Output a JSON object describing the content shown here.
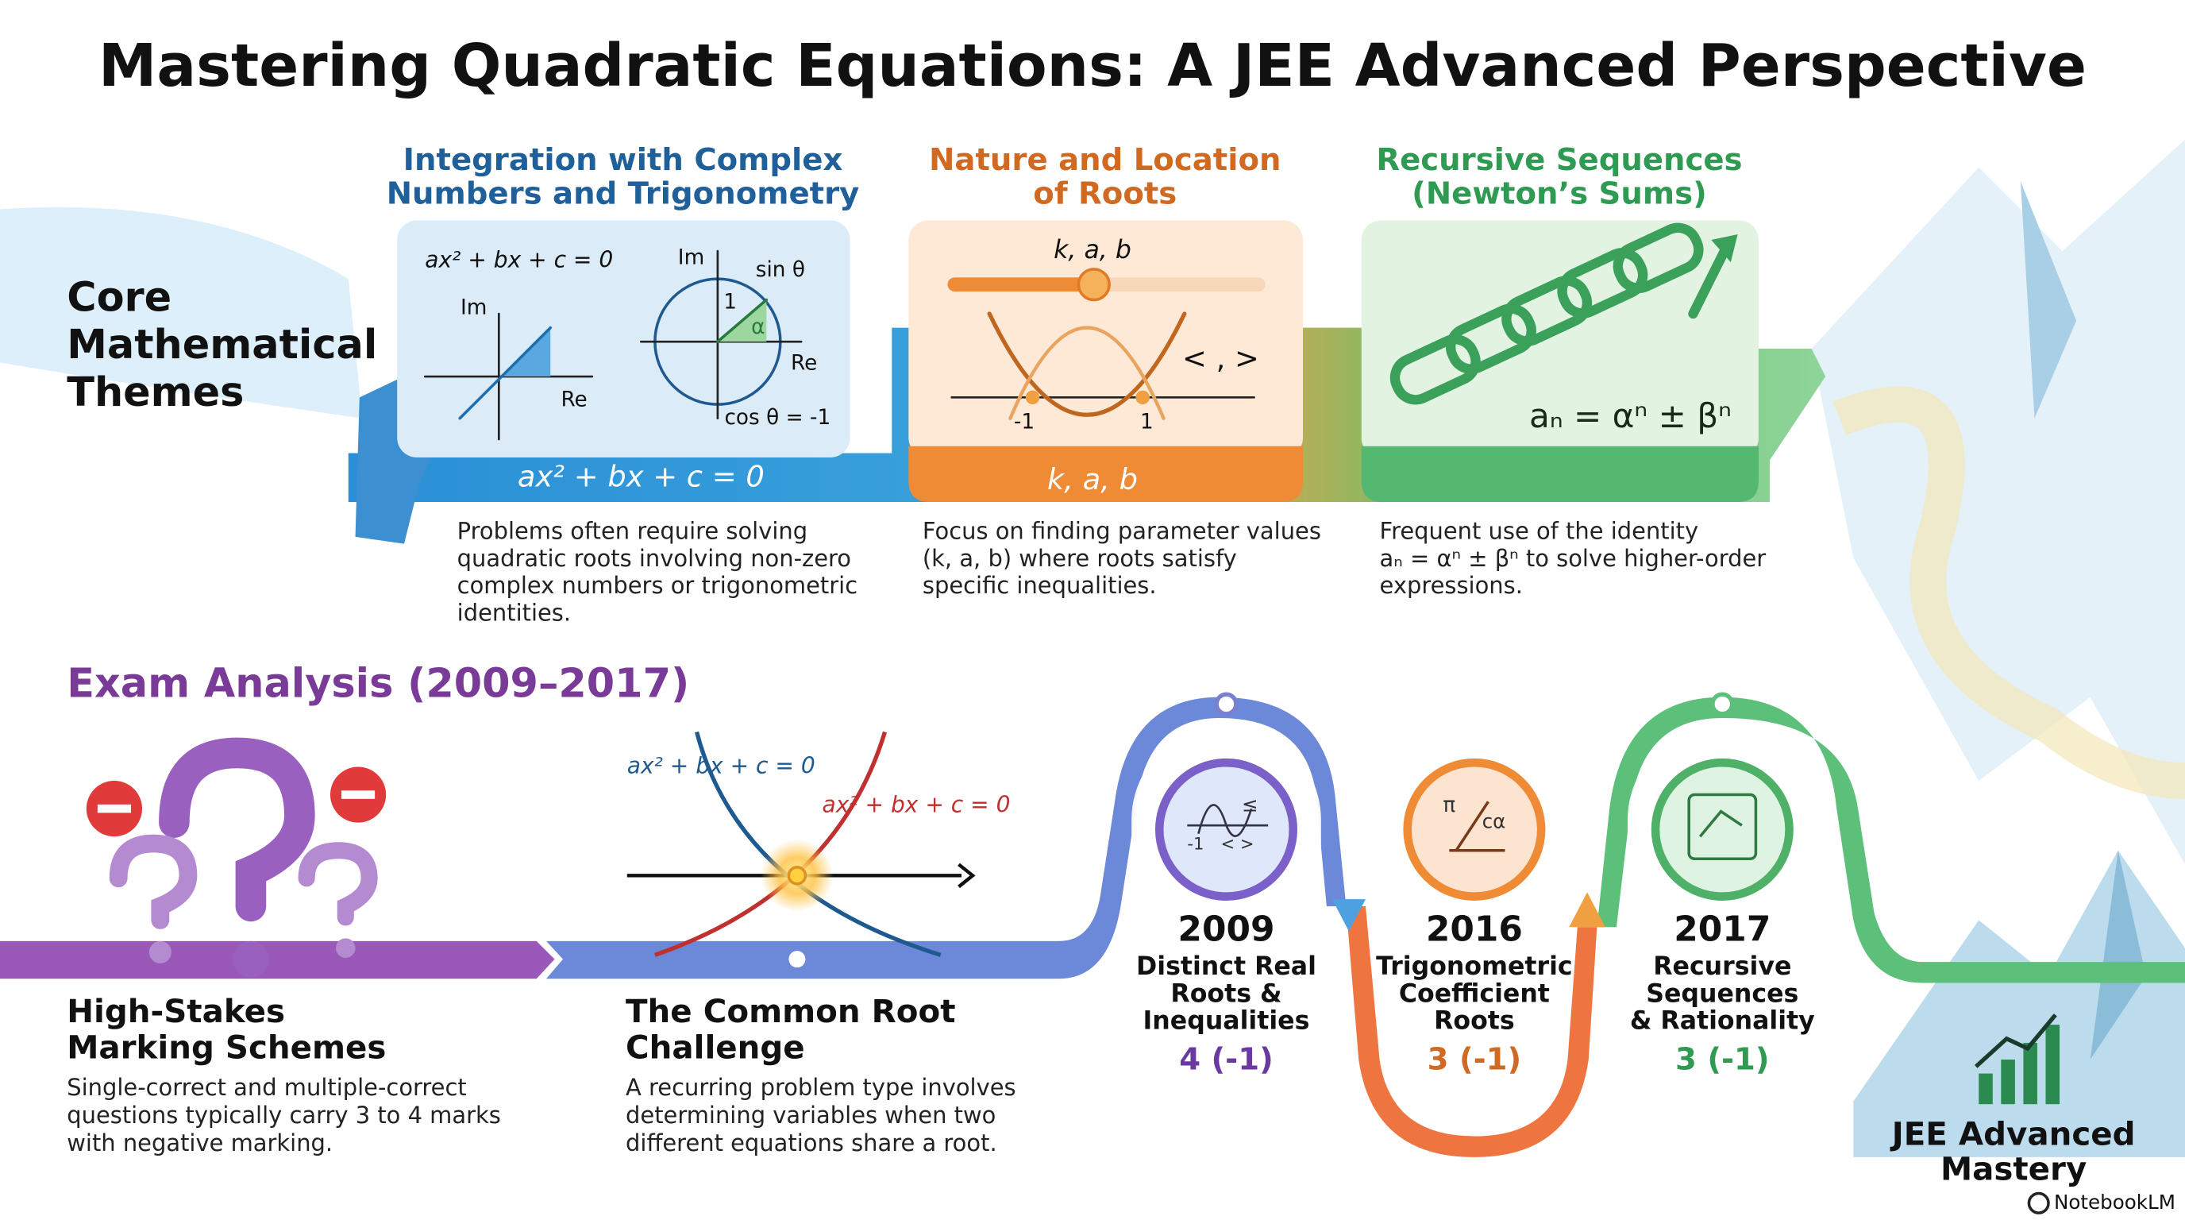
{
  "title": "Mastering Quadratic Equations: A JEE Advanced Perspective",
  "themes": {
    "heading": [
      "Core",
      "Mathematical",
      "Themes"
    ],
    "cards": [
      {
        "title": [
          "Integration with Complex",
          "Numbers and Trigonometry"
        ],
        "equation": "ax² + bx + c = 0",
        "plane_labels": [
          "Im",
          "Re"
        ],
        "circle_labels": [
          "Im",
          "Re",
          "sin θ",
          "1",
          "α",
          "cos θ = -1"
        ],
        "band": "ax² + bx + c = 0",
        "description": [
          "Problems often require solving",
          "quadratic roots involving non-zero",
          "complex numbers or trigonometric",
          "identities."
        ]
      },
      {
        "title": [
          "Nature and Location",
          "of Roots"
        ],
        "slider_label": "k, a, b",
        "inequality": "< , >",
        "root_labels": [
          "-1",
          "1"
        ],
        "band": "k, a, b",
        "description": [
          "Focus on finding parameter values",
          "(k, a, b) where roots satisfy",
          "specific inequalities."
        ]
      },
      {
        "title": [
          "Recursive Sequences",
          "(Newton’s Sums)"
        ],
        "formula": "aₙ = αⁿ ± βⁿ",
        "description": [
          "Frequent use of the identity",
          "aₙ = αⁿ ± βⁿ to solve higher-order",
          "expressions."
        ]
      }
    ]
  },
  "exam": {
    "heading": "Exam Analysis (2009–2017)",
    "marking": {
      "title": [
        "High-Stakes",
        "Marking Schemes"
      ],
      "description": [
        "Single-correct and multiple-correct",
        "questions typically carry 3 to 4 marks",
        "with negative marking."
      ]
    },
    "common_root": {
      "equations": [
        "ax² + bx + c = 0",
        "ax² + bx + c = 0"
      ],
      "title": [
        "The Common Root",
        "Challenge"
      ],
      "description": [
        "A recurring problem type involves",
        "determining variables when two",
        "different equations share a root."
      ]
    },
    "timeline": [
      {
        "year": "2009",
        "topic": [
          "Distinct Real",
          "Roots &",
          "Inequalities"
        ],
        "score": "4 (-1)",
        "icon_labels": [
          "≤",
          "-1",
          "< >"
        ]
      },
      {
        "year": "2016",
        "topic": [
          "Trigonometric",
          "Coefficient",
          "Roots"
        ],
        "score": "3 (-1)",
        "icon_labels": [
          "π",
          "cα"
        ]
      },
      {
        "year": "2017",
        "topic": [
          "Recursive",
          "Sequences",
          "& Rationality"
        ],
        "score": "3 (-1)"
      }
    ]
  },
  "mastery": [
    "JEE Advanced",
    "Mastery"
  ],
  "brand": "NotebookLM"
}
